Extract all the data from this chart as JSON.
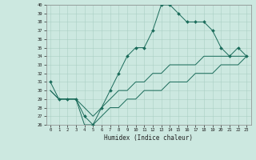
{
  "xlabel": "Humidex (Indice chaleur)",
  "background_color": "#cce8e0",
  "grid_color": "#aacfc5",
  "line_color": "#1a6b5a",
  "xlim": [
    -0.5,
    23.5
  ],
  "ylim": [
    26,
    40
  ],
  "xticks": [
    0,
    1,
    2,
    3,
    4,
    5,
    6,
    7,
    8,
    9,
    10,
    11,
    12,
    13,
    14,
    15,
    16,
    17,
    18,
    19,
    20,
    21,
    22,
    23
  ],
  "yticks": [
    26,
    27,
    28,
    29,
    30,
    31,
    32,
    33,
    34,
    35,
    36,
    37,
    38,
    39,
    40
  ],
  "line1_x": [
    0,
    1,
    2,
    3,
    4,
    5,
    6,
    7,
    8,
    9,
    10,
    11,
    12,
    13,
    14,
    15,
    16,
    17,
    18,
    19,
    20,
    21,
    22,
    23
  ],
  "line1_y": [
    31,
    29,
    29,
    29,
    27,
    26,
    28,
    30,
    32,
    34,
    35,
    35,
    37,
    40,
    40,
    39,
    38,
    38,
    38,
    37,
    35,
    34,
    35,
    34
  ],
  "line2_x": [
    0,
    1,
    2,
    3,
    4,
    5,
    6,
    7,
    8,
    9,
    10,
    11,
    12,
    13,
    14,
    15,
    16,
    17,
    18,
    19,
    20,
    21,
    22,
    23
  ],
  "line2_y": [
    30,
    29,
    29,
    29,
    28,
    27,
    28,
    29,
    30,
    30,
    31,
    31,
    32,
    32,
    33,
    33,
    33,
    33,
    34,
    34,
    34,
    34,
    34,
    34
  ],
  "line3_x": [
    0,
    1,
    2,
    3,
    4,
    5,
    6,
    7,
    8,
    9,
    10,
    11,
    12,
    13,
    14,
    15,
    16,
    17,
    18,
    19,
    20,
    21,
    22,
    23
  ],
  "line3_y": [
    30,
    29,
    29,
    29,
    26,
    26,
    27,
    28,
    28,
    29,
    29,
    30,
    30,
    30,
    31,
    31,
    31,
    32,
    32,
    32,
    33,
    33,
    33,
    34
  ]
}
